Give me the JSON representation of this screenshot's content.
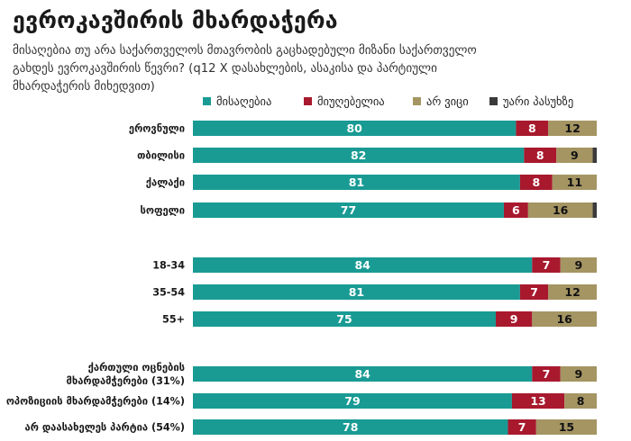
{
  "header": {
    "title": "ევროკავშირის მხარდაჭერა",
    "subtitle": "მისაღებია თუ არა საქართველოს მთავრობის გაცხადებული მიზანი საქართველო\nგახდეს ევროკავშირის წევრი? (q12 X დასახლების, ასაკისა და პარტიული\nმხარდაჭერის მიხედვით)"
  },
  "colors": {
    "acceptable": "#199b94",
    "unacceptable": "#a8192e",
    "dont_know": "#a49563",
    "refuse": "#3a3a3a"
  },
  "chart_data": {
    "type": "bar",
    "orientation": "horizontal",
    "stacked": true,
    "xlim": [
      0,
      100
    ],
    "unit": "%",
    "legend_position": "top",
    "legend": [
      "მისაღებია",
      "მიუღებელია",
      "არ ვიცი",
      "უარი პასუხზე"
    ],
    "categories": [
      [
        "ეროვნული"
      ],
      [
        "თბილისი"
      ],
      [
        "ქალაქი"
      ],
      [
        "სოფელი"
      ],
      [
        "18-34"
      ],
      [
        "35-54"
      ],
      [
        "55+"
      ],
      [
        "ქართული ოცნების",
        "მხარდამჭერები (31%)"
      ],
      [
        "ოპოზიციის მხარდამჭერები (14%)"
      ],
      [
        "არ დაასახელეს პარტია  (54%)"
      ]
    ],
    "groups": [
      [
        0,
        1,
        2,
        3
      ],
      [
        4,
        5,
        6
      ],
      [
        7,
        8,
        9
      ]
    ],
    "series": [
      {
        "name": "მისაღებია",
        "values": [
          80,
          82,
          81,
          77,
          84,
          81,
          75,
          84,
          79,
          78
        ]
      },
      {
        "name": "მიუღებელია",
        "values": [
          8,
          8,
          8,
          6,
          7,
          7,
          9,
          7,
          13,
          7
        ]
      },
      {
        "name": "არ ვიცი",
        "values": [
          12,
          9,
          11,
          16,
          9,
          12,
          16,
          9,
          8,
          15
        ]
      },
      {
        "name": "უარი პასუხზე",
        "values": [
          0,
          1,
          0,
          1,
          0,
          0,
          0,
          0,
          0,
          0
        ]
      }
    ]
  }
}
